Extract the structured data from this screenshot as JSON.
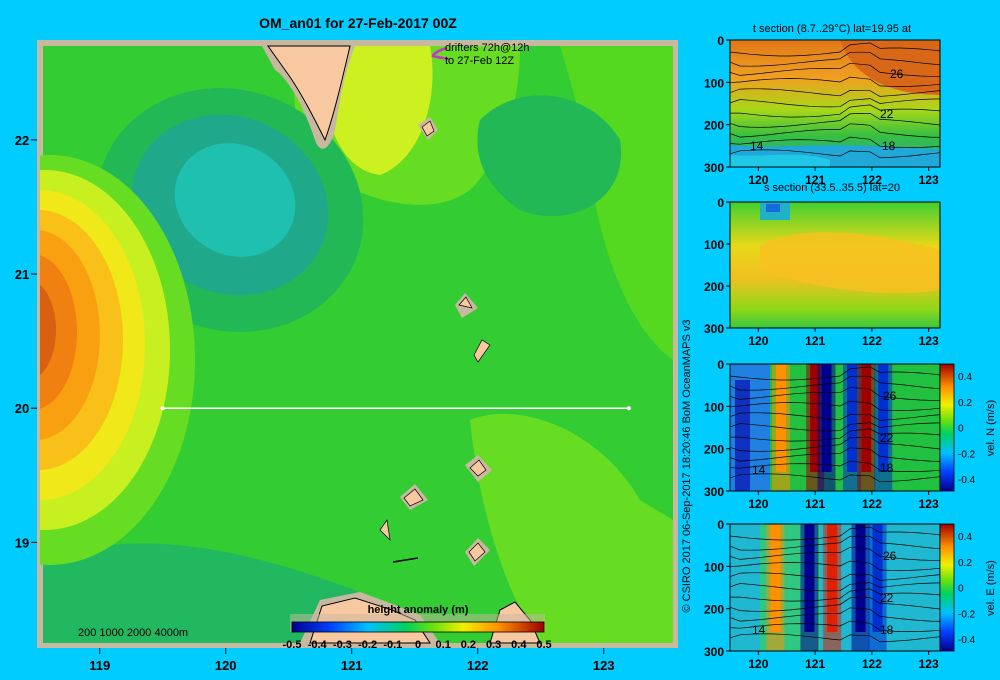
{
  "main_title": "OM_an01 for 27-Feb-2017 00Z",
  "drifters_line1": "drifters 72h@12h",
  "drifters_line2": "to 27-Feb 12Z",
  "depth_legend": "200  1000  2000  4000m",
  "copyright": "© CSIRO 2017   06-Sep-2017 18:20:46 BoM OceanMAPS v3",
  "colors": {
    "background": "#00ccff",
    "land": "#f8c8a0",
    "shelf": "#c8b8a0",
    "section_line": "#ffffff",
    "drifter": "#cc33cc"
  },
  "chart_data": [
    {
      "type": "heatmap",
      "name": "map",
      "title": "OM_an01 for 27-Feb-2017 00Z",
      "x_ticks": [
        "119",
        "120",
        "121",
        "122",
        "123"
      ],
      "y_ticks": [
        "22",
        "21",
        "20",
        "19"
      ],
      "xlim": [
        118.55,
        123.55
      ],
      "ylim": [
        18.25,
        22.7
      ],
      "section_line": {
        "lon": [
          119.5,
          123.2
        ],
        "lat": [
          20.0,
          20.0
        ]
      },
      "colorbar": {
        "title": "height anomaly  (m)",
        "ticks": [
          "-0.5",
          "-0.4",
          "-0.3",
          "-0.2",
          "-0.1",
          "0",
          "0.1",
          "0.2",
          "0.3",
          "0.4",
          "0.5"
        ],
        "range": [
          -0.5,
          0.5
        ]
      },
      "features": [
        {
          "kind": "high",
          "lon": 118.65,
          "lat": 20.5,
          "value": 0.38
        },
        {
          "kind": "low",
          "lon": 120.2,
          "lat": 21.35,
          "value": -0.18
        },
        {
          "kind": "high",
          "lon": 120.35,
          "lat": 22.3,
          "value": 0.1
        },
        {
          "kind": "low",
          "lon": 122.5,
          "lat": 21.9,
          "value": -0.05
        },
        {
          "kind": "high",
          "lon": 122.6,
          "lat": 19.4,
          "value": 0.06
        }
      ]
    },
    {
      "type": "heatmap",
      "name": "t-section",
      "title": "t section (8.7..29°C) lat=19.95 at",
      "x_ticks": [
        "120",
        "121",
        "122",
        "123"
      ],
      "y_ticks": [
        "0",
        "100",
        "200",
        "300"
      ],
      "contour_labels": [
        "26",
        "22",
        "18",
        "14"
      ]
    },
    {
      "type": "heatmap",
      "name": "s-section",
      "title": "s section (33.5..35.5) lat=20",
      "x_ticks": [
        "120",
        "121",
        "122",
        "123"
      ],
      "y_ticks": [
        "0",
        "100",
        "200",
        "300"
      ]
    },
    {
      "type": "heatmap",
      "name": "vel-n-section",
      "title": "",
      "x_ticks": [
        "120",
        "121",
        "122",
        "123"
      ],
      "y_ticks": [
        "0",
        "100",
        "200",
        "300"
      ],
      "contour_labels": [
        "26",
        "22",
        "18",
        "14"
      ],
      "colorbar": {
        "label": "vel. N  (m/s)",
        "ticks": [
          "0.4",
          "0.2",
          "0",
          "-0.2",
          "-0.4"
        ],
        "range": [
          -0.4,
          0.4
        ]
      },
      "jets": [
        {
          "lon": 121.0,
          "value": 0.35
        },
        {
          "lon": 121.2,
          "value": -0.35
        },
        {
          "lon": 121.65,
          "value": -0.3
        },
        {
          "lon": 121.9,
          "value": 0.4
        },
        {
          "lon": 122.2,
          "value": -0.25
        },
        {
          "lon": 120.4,
          "value": 0.2
        }
      ]
    },
    {
      "type": "heatmap",
      "name": "vel-e-section",
      "title": "",
      "x_ticks": [
        "120",
        "121",
        "122",
        "123"
      ],
      "y_ticks": [
        "0",
        "100",
        "200",
        "300"
      ],
      "contour_labels": [
        "26",
        "22",
        "18",
        "14"
      ],
      "colorbar": {
        "label": "vel. E  (m/s)",
        "ticks": [
          "0.4",
          "0.2",
          "0",
          "-0.2",
          "-0.4"
        ],
        "range": [
          -0.4,
          0.4
        ]
      },
      "jets": [
        {
          "lon": 120.9,
          "value": -0.4
        },
        {
          "lon": 121.3,
          "value": 0.3
        },
        {
          "lon": 121.8,
          "value": -0.4
        },
        {
          "lon": 122.1,
          "value": -0.3
        },
        {
          "lon": 120.3,
          "value": 0.15
        }
      ]
    }
  ]
}
